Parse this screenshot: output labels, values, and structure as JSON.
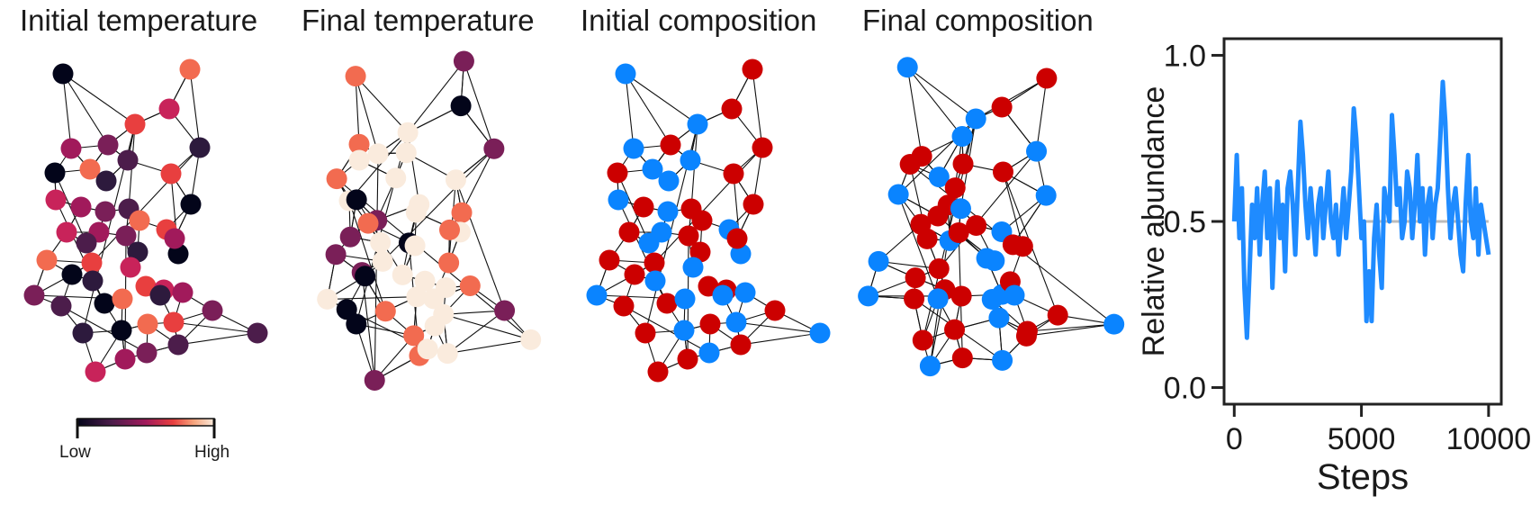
{
  "panels": [
    {
      "title": "Initial temperature",
      "color_mode": "temperature_initial"
    },
    {
      "title": "Final temperature",
      "color_mode": "temperature_final"
    },
    {
      "title": "Initial composition",
      "color_mode": "composition_initial"
    },
    {
      "title": "Final composition",
      "color_mode": "composition_final"
    }
  ],
  "colorbar": {
    "low_label": "Low",
    "high_label": "High",
    "colormap": "rocket"
  },
  "colors": {
    "species_a": "#0a84ff",
    "species_b": "#cc0000",
    "edge": "#111111",
    "series": "#1f8bff",
    "reference_line": "#bbbbbb"
  },
  "chart_data": {
    "type": "line",
    "title": "",
    "xlabel": "Steps",
    "ylabel": "Relative abundance",
    "xlim": [
      -400,
      10500
    ],
    "ylim": [
      -0.05,
      1.05
    ],
    "xticks": [
      0,
      5000,
      10000
    ],
    "xtick_labels": [
      "0",
      "5000",
      "10000"
    ],
    "yticks": [
      0.0,
      0.5,
      1.0
    ],
    "ytick_labels": [
      "0.0",
      "0.5",
      "1.0"
    ],
    "reference_line": {
      "y": 0.5,
      "x": [
        5000,
        10000
      ]
    },
    "series": [
      {
        "x": [
          0,
          100,
          200,
          300,
          400,
          500,
          600,
          700,
          800,
          900,
          1000,
          1100,
          1200,
          1300,
          1400,
          1500,
          1600,
          1700,
          1800,
          1900,
          2000,
          2100,
          2200,
          2300,
          2400,
          2500,
          2600,
          2700,
          2800,
          2900,
          3000,
          3100,
          3200,
          3300,
          3400,
          3500,
          3600,
          3700,
          3800,
          3900,
          4000,
          4100,
          4200,
          4300,
          4400,
          4500,
          4600,
          4700,
          4800,
          4900,
          5000,
          5100,
          5200,
          5300,
          5400,
          5500,
          5600,
          5700,
          5800,
          5900,
          6000,
          6100,
          6200,
          6300,
          6400,
          6500,
          6600,
          6700,
          6800,
          6900,
          7000,
          7100,
          7200,
          7300,
          7400,
          7500,
          7600,
          7700,
          7800,
          7900,
          8000,
          8100,
          8200,
          8300,
          8400,
          8500,
          8600,
          8700,
          8800,
          8900,
          9000,
          9100,
          9200,
          9300,
          9400,
          9500,
          9600,
          9700,
          9800,
          9900,
          10000
        ],
        "values": [
          0.5,
          0.7,
          0.45,
          0.6,
          0.3,
          0.15,
          0.35,
          0.55,
          0.45,
          0.6,
          0.4,
          0.55,
          0.65,
          0.45,
          0.6,
          0.3,
          0.5,
          0.62,
          0.45,
          0.55,
          0.35,
          0.6,
          0.65,
          0.55,
          0.4,
          0.6,
          0.8,
          0.7,
          0.55,
          0.45,
          0.6,
          0.5,
          0.4,
          0.55,
          0.6,
          0.45,
          0.55,
          0.65,
          0.5,
          0.45,
          0.55,
          0.4,
          0.5,
          0.6,
          0.45,
          0.55,
          0.65,
          0.84,
          0.75,
          0.6,
          0.45,
          0.5,
          0.2,
          0.35,
          0.2,
          0.45,
          0.55,
          0.4,
          0.3,
          0.6,
          0.55,
          0.5,
          0.82,
          0.7,
          0.55,
          0.6,
          0.45,
          0.5,
          0.65,
          0.6,
          0.45,
          0.55,
          0.7,
          0.5,
          0.6,
          0.4,
          0.55,
          0.6,
          0.45,
          0.55,
          0.6,
          0.75,
          0.92,
          0.8,
          0.6,
          0.45,
          0.55,
          0.6,
          0.5,
          0.4,
          0.35,
          0.55,
          0.7,
          0.5,
          0.45,
          0.6,
          0.4,
          0.55,
          0.5,
          0.45,
          0.4
        ]
      }
    ]
  }
}
